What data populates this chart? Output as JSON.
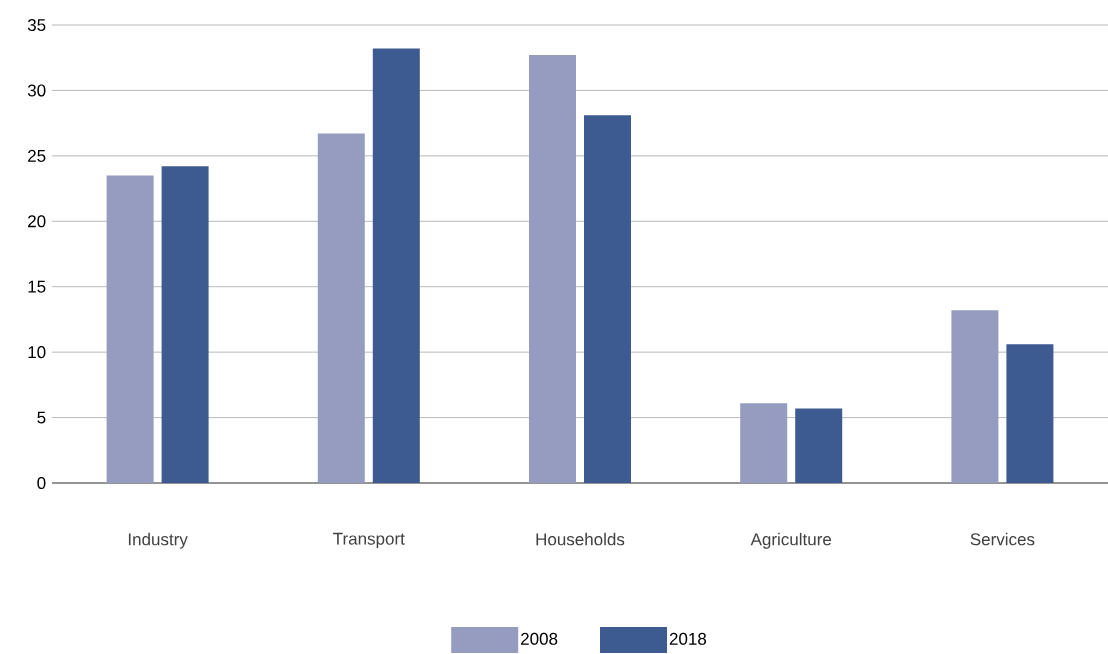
{
  "chart_data": {
    "type": "bar",
    "categories": [
      "Industry",
      "Transport",
      "Households",
      "Agriculture",
      "Services"
    ],
    "series": [
      {
        "name": "2008",
        "color": "#959cbf",
        "values": [
          23.5,
          26.7,
          32.7,
          6.1,
          13.2
        ]
      },
      {
        "name": "2018",
        "color": "#3d5a91",
        "values": [
          24.2,
          33.2,
          28.1,
          5.7,
          10.6
        ]
      }
    ],
    "ylim": [
      0,
      35
    ],
    "yticks": [
      0,
      5,
      10,
      15,
      20,
      25,
      30,
      35
    ],
    "grid": "y",
    "legend": "bottom"
  }
}
